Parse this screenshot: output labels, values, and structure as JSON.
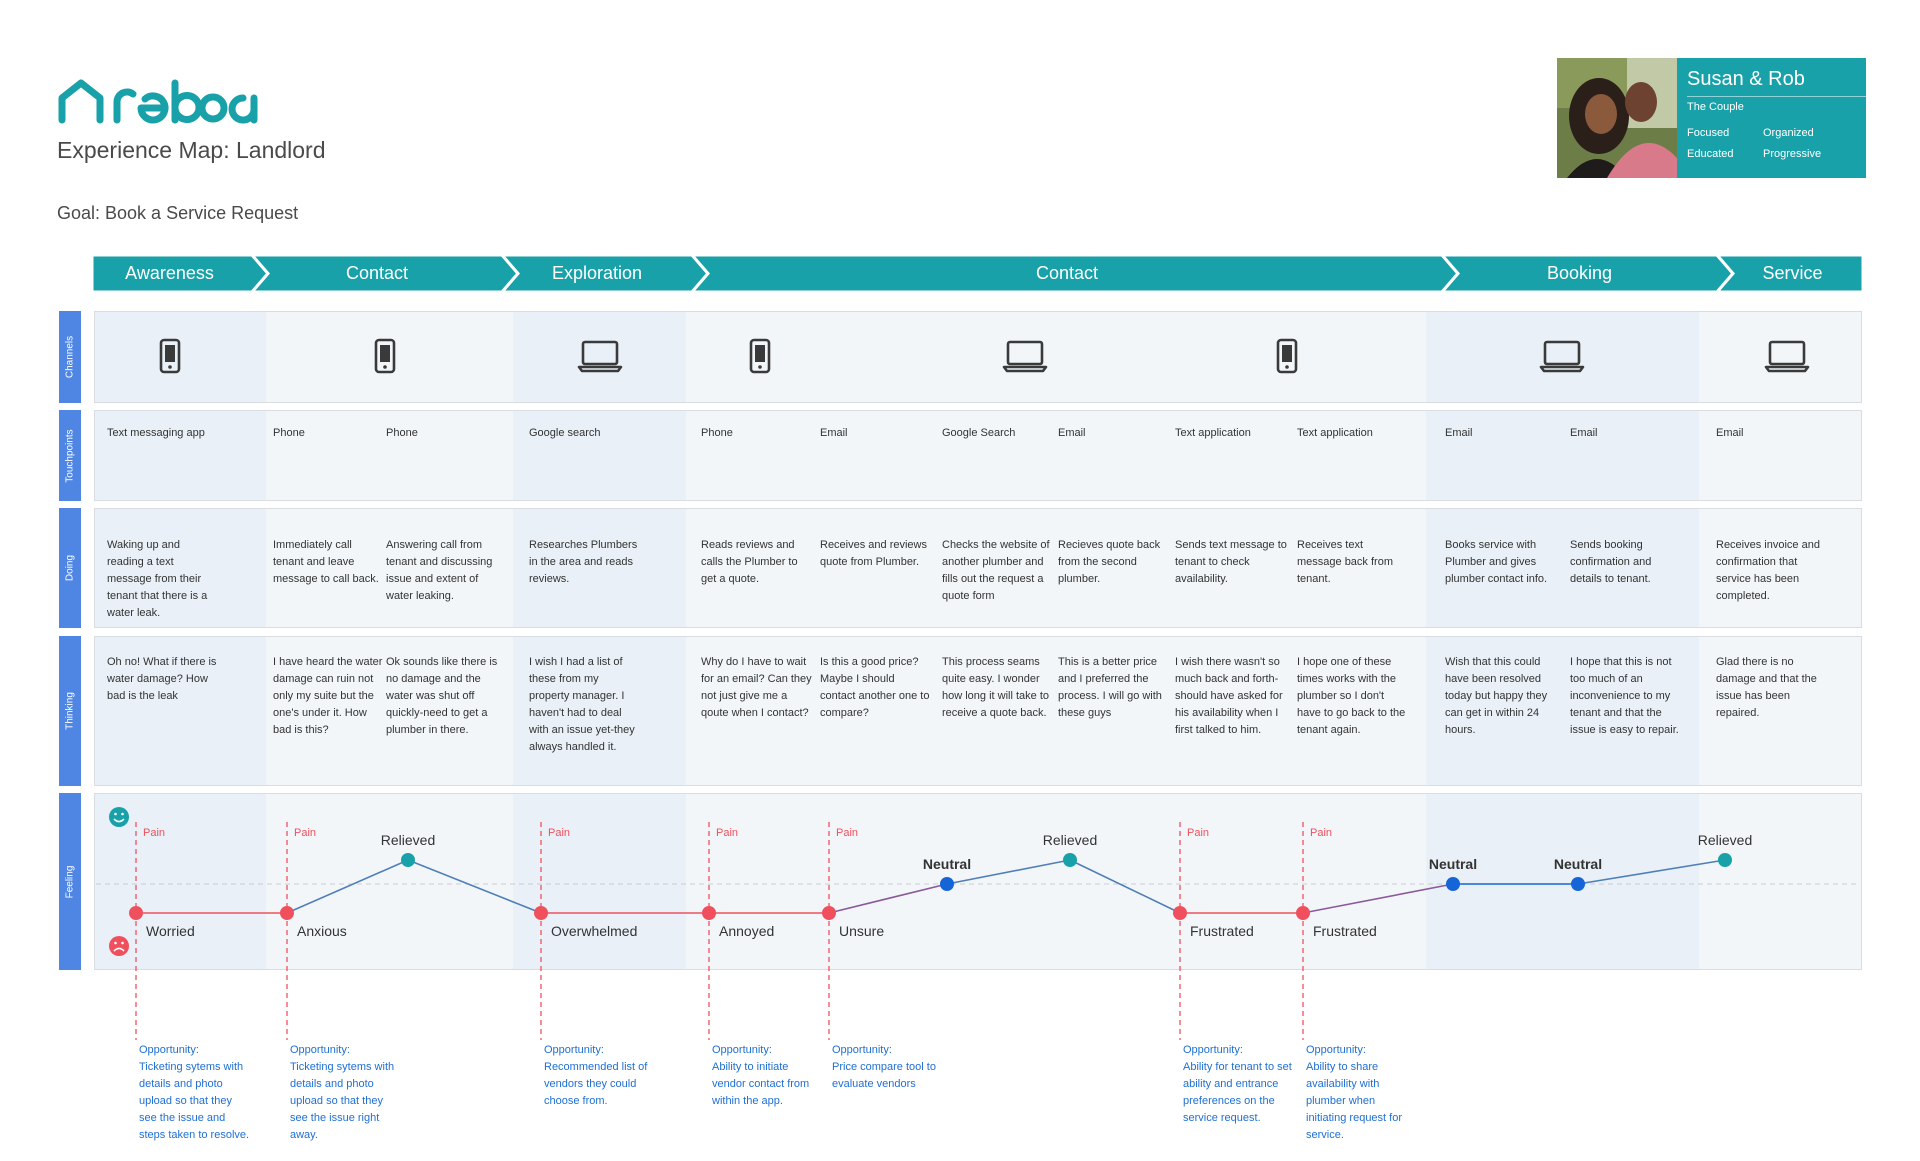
{
  "brand": {
    "logo_text": "reboa",
    "color": "#19a1a9"
  },
  "title": "Experience Map: Landlord",
  "goal": "Goal: Book a Service Request",
  "persona": {
    "name": "Susan & Rob",
    "role": "The Couple",
    "traits": [
      "Focused",
      "Organized",
      "Educated",
      "Progressive"
    ]
  },
  "stages": [
    "Awareness",
    "Contact",
    "Exploration",
    "Contact",
    "Booking",
    "Service"
  ],
  "row_labels": {
    "channels": "Channels",
    "touchpoints": "Touchpoints",
    "doing": "Doing",
    "thinking": "Thinking",
    "feeling": "Feeling"
  },
  "channels": [
    "phone-icon",
    "phone-icon",
    "laptop-icon",
    "phone-icon",
    "laptop-icon",
    "phone-icon",
    "laptop-icon",
    "laptop-icon"
  ],
  "steps": [
    {
      "touchpoint": "Text messaging app",
      "doing": "Waking up and reading a text message from their tenant that there is a water leak.",
      "thinking": "Oh no! What if there is water damage?  How bad is the leak",
      "feeling": "Worried",
      "mood": "negative",
      "pain": "Pain",
      "opportunity": "Opportunity:\nTicketing sytems with details and photo upload so that they see the issue and steps taken to resolve."
    },
    {
      "touchpoint": "Phone",
      "doing": "Immediately call tenant and leave message to call back.",
      "thinking": "I have heard the water damage can ruin not only my suite but the one's under it. How bad is this?",
      "feeling": "Anxious",
      "mood": "negative",
      "pain": "Pain",
      "opportunity": "Opportunity:\nTicketing sytems with details and photo upload so that they see the issue right away."
    },
    {
      "touchpoint": "Phone",
      "doing": "Answering call from tenant and discussing issue and extent of water leaking.",
      "thinking": "Ok sounds like there is no damage and the water was shut off quickly-need to get a plumber in there.",
      "feeling": "Relieved",
      "mood": "positive",
      "pain": "",
      "opportunity": ""
    },
    {
      "touchpoint": "Google search",
      "doing": "Researches Plumbers in the area and reads reviews.",
      "thinking": "I wish I had a list of these from my property manager. I haven't had to deal with an issue yet-they always handled it.",
      "feeling": "Overwhelmed",
      "mood": "negative",
      "pain": "Pain",
      "opportunity": "Opportunity:\nRecommended list of vendors they could choose from."
    },
    {
      "touchpoint": "Phone",
      "doing": "Reads reviews and calls the Plumber to get a quote.",
      "thinking": "Why do I have to wait for an email? Can they not just give me a qoute when I contact?",
      "feeling": "Annoyed",
      "mood": "negative",
      "pain": "Pain",
      "opportunity": "Opportunity:\nAbility to initiate vendor contact from within the app."
    },
    {
      "touchpoint": "Email",
      "doing": "Receives and reviews quote from Plumber.",
      "thinking": "Is this a good price? Maybe I should contact another one to compare?",
      "feeling": "Unsure",
      "mood": "negative",
      "pain": "Pain",
      "opportunity": "Opportunity:\nPrice compare tool to evaluate vendors"
    },
    {
      "touchpoint": "Google Search",
      "doing": "Checks the website of another plumber and fills out the request a quote form",
      "thinking": "This process seams quite easy. I wonder how long it will take to receive a quote back.",
      "feeling": "Neutral",
      "mood": "neutral",
      "pain": "",
      "opportunity": ""
    },
    {
      "touchpoint": "Email",
      "doing": "Recieves quote back from the second plumber.",
      "thinking": "This is a better price and I preferred the process. I will go with these guys",
      "feeling": "Relieved",
      "mood": "positive",
      "pain": "",
      "opportunity": ""
    },
    {
      "touchpoint": "Text application",
      "doing": "Sends text message to tenant to check availability.",
      "thinking": "I wish there wasn't so much back and forth-should have asked for his availability when I first talked to him.",
      "feeling": "Frustrated",
      "mood": "negative",
      "pain": "Pain",
      "opportunity": "Opportunity:\nAbility for tenant to set ability and entrance preferences on the service request."
    },
    {
      "touchpoint": "Text application",
      "doing": "Receives text message back from tenant.",
      "thinking": "I hope one of these times works with the plumber so I don't have to go back to the tenant again.",
      "feeling": "Frustrated",
      "mood": "negative",
      "pain": "Pain",
      "opportunity": "Opportunity:\nAbility to share availability with plumber when initiating request for service."
    },
    {
      "touchpoint": "Email",
      "doing": "Books service with Plumber and gives plumber contact info.",
      "thinking": "Wish that this could have been resolved today but happy they can get in within 24 hours.",
      "feeling": "Neutral",
      "mood": "neutral",
      "pain": "",
      "opportunity": ""
    },
    {
      "touchpoint": "Email",
      "doing": "Sends booking confirmation and details to tenant.",
      "thinking": "I hope that this is not too much of an inconvenience to my tenant and that the issue is easy to repair.",
      "feeling": "Neutral",
      "mood": "neutral",
      "pain": "",
      "opportunity": ""
    },
    {
      "touchpoint": "Email",
      "doing": "Receives invoice and confirmation that service has been completed.",
      "thinking": "Glad there is no damage and that the issue has been repaired.",
      "feeling": "Relieved",
      "mood": "positive",
      "pain": "",
      "opportunity": ""
    }
  ],
  "colors": {
    "teal": "#19a1a9",
    "row_label_blue": "#4f86e3",
    "pain_red": "#f0505e",
    "neutral_blue": "#1565d8",
    "opportunity_blue": "#1f6fd1"
  }
}
